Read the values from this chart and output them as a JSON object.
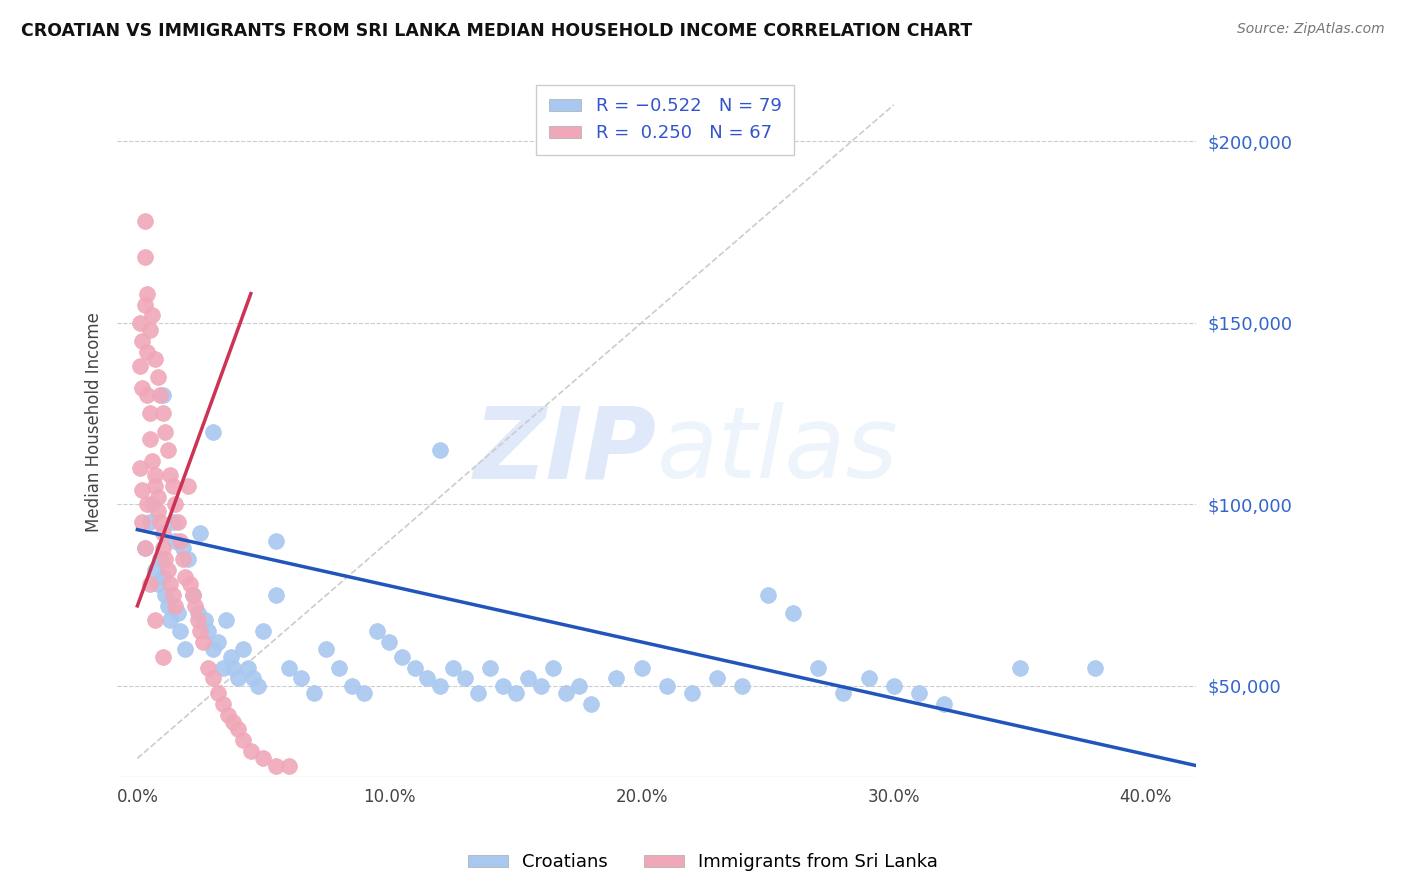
{
  "title": "CROATIAN VS IMMIGRANTS FROM SRI LANKA MEDIAN HOUSEHOLD INCOME CORRELATION CHART",
  "source": "Source: ZipAtlas.com",
  "ylabel": "Median Household Income",
  "xlabel_ticks": [
    "0.0%",
    "10.0%",
    "20.0%",
    "30.0%",
    "40.0%"
  ],
  "xlabel_tick_vals": [
    0.0,
    0.1,
    0.2,
    0.3,
    0.4
  ],
  "ytick_vals": [
    50000,
    100000,
    150000,
    200000
  ],
  "ytick_labels": [
    "$50,000",
    "$100,000",
    "$150,000",
    "$200,000"
  ],
  "xlim": [
    -0.008,
    0.42
  ],
  "ylim": [
    25000,
    220000
  ],
  "blue_color": "#a8c8f0",
  "pink_color": "#f0a8b8",
  "blue_line_color": "#2255bb",
  "pink_line_color": "#cc3355",
  "diagonal_color": "#cccccc",
  "legend_label1": "Croatians",
  "legend_label2": "Immigrants from Sri Lanka",
  "watermark_zip": "ZIP",
  "watermark_atlas": "atlas",
  "blue_line_x0": 0.0,
  "blue_line_x1": 0.42,
  "blue_line_y0": 93000,
  "blue_line_y1": 28000,
  "pink_line_x0": 0.0,
  "pink_line_x1": 0.045,
  "pink_line_y0": 72000,
  "pink_line_y1": 158000,
  "diag_line_x0": 0.0,
  "diag_line_x1": 0.3,
  "diag_line_y0": 30000,
  "diag_line_y1": 210000,
  "blue_scatter_x": [
    0.003,
    0.005,
    0.006,
    0.007,
    0.008,
    0.009,
    0.01,
    0.011,
    0.012,
    0.013,
    0.014,
    0.015,
    0.016,
    0.017,
    0.018,
    0.019,
    0.02,
    0.022,
    0.024,
    0.025,
    0.027,
    0.028,
    0.03,
    0.032,
    0.034,
    0.035,
    0.037,
    0.038,
    0.04,
    0.042,
    0.044,
    0.046,
    0.048,
    0.05,
    0.055,
    0.06,
    0.065,
    0.07,
    0.075,
    0.08,
    0.085,
    0.09,
    0.095,
    0.1,
    0.105,
    0.11,
    0.115,
    0.12,
    0.125,
    0.13,
    0.135,
    0.14,
    0.145,
    0.15,
    0.155,
    0.16,
    0.165,
    0.17,
    0.175,
    0.18,
    0.19,
    0.2,
    0.21,
    0.22,
    0.23,
    0.24,
    0.25,
    0.26,
    0.27,
    0.28,
    0.29,
    0.3,
    0.31,
    0.32,
    0.35,
    0.38,
    0.01,
    0.03,
    0.055,
    0.12
  ],
  "blue_scatter_y": [
    88000,
    95000,
    100000,
    82000,
    78000,
    85000,
    80000,
    75000,
    72000,
    68000,
    95000,
    90000,
    70000,
    65000,
    88000,
    60000,
    85000,
    75000,
    70000,
    92000,
    68000,
    65000,
    60000,
    62000,
    55000,
    68000,
    58000,
    55000,
    52000,
    60000,
    55000,
    52000,
    50000,
    65000,
    75000,
    55000,
    52000,
    48000,
    60000,
    55000,
    50000,
    48000,
    65000,
    62000,
    58000,
    55000,
    52000,
    50000,
    55000,
    52000,
    48000,
    55000,
    50000,
    48000,
    52000,
    50000,
    55000,
    48000,
    50000,
    45000,
    52000,
    55000,
    50000,
    48000,
    52000,
    50000,
    75000,
    70000,
    55000,
    48000,
    52000,
    50000,
    48000,
    45000,
    55000,
    55000,
    130000,
    120000,
    90000,
    115000
  ],
  "pink_scatter_x": [
    0.001,
    0.001,
    0.002,
    0.002,
    0.003,
    0.003,
    0.003,
    0.004,
    0.004,
    0.004,
    0.005,
    0.005,
    0.005,
    0.006,
    0.006,
    0.007,
    0.007,
    0.007,
    0.008,
    0.008,
    0.008,
    0.009,
    0.009,
    0.01,
    0.01,
    0.01,
    0.011,
    0.011,
    0.012,
    0.012,
    0.013,
    0.013,
    0.014,
    0.014,
    0.015,
    0.015,
    0.016,
    0.017,
    0.018,
    0.019,
    0.02,
    0.021,
    0.022,
    0.023,
    0.024,
    0.025,
    0.026,
    0.028,
    0.03,
    0.032,
    0.034,
    0.036,
    0.038,
    0.04,
    0.042,
    0.045,
    0.05,
    0.055,
    0.06,
    0.002,
    0.003,
    0.005,
    0.007,
    0.01,
    0.001,
    0.002,
    0.004
  ],
  "pink_scatter_y": [
    150000,
    138000,
    145000,
    132000,
    168000,
    178000,
    155000,
    142000,
    158000,
    130000,
    125000,
    148000,
    118000,
    152000,
    112000,
    140000,
    108000,
    105000,
    135000,
    102000,
    98000,
    130000,
    95000,
    125000,
    92000,
    88000,
    120000,
    85000,
    115000,
    82000,
    108000,
    78000,
    105000,
    75000,
    100000,
    72000,
    95000,
    90000,
    85000,
    80000,
    105000,
    78000,
    75000,
    72000,
    68000,
    65000,
    62000,
    55000,
    52000,
    48000,
    45000,
    42000,
    40000,
    38000,
    35000,
    32000,
    30000,
    28000,
    28000,
    95000,
    88000,
    78000,
    68000,
    58000,
    110000,
    104000,
    100000
  ]
}
